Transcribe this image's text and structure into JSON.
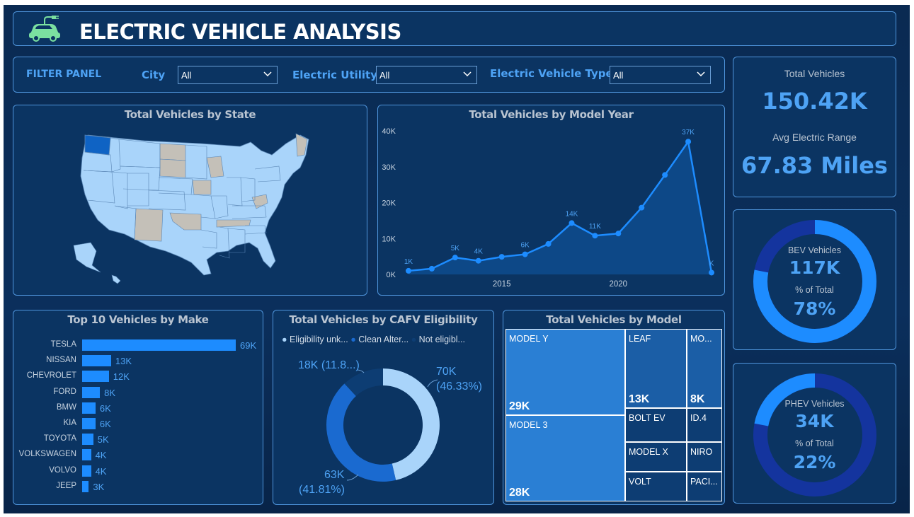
{
  "header": {
    "title": "ELECTRIC VEHICLE ANALYSIS",
    "logo_icon": "car-plug-icon"
  },
  "filters": {
    "panel_label": "FILTER PANEL",
    "items": [
      {
        "label": "City",
        "value": "All"
      },
      {
        "label": "Electric Utility",
        "value": "All"
      },
      {
        "label": "Electric Vehicle Type",
        "value": "All"
      }
    ]
  },
  "kpis": {
    "total_vehicles_label": "Total Vehicles",
    "total_vehicles_value": "150.42K",
    "avg_range_label": "Avg Electric Range",
    "avg_range_value": "67.83 Miles",
    "bev": {
      "label": "BEV Vehicles",
      "value": "117K",
      "pct_label": "% of Total",
      "pct_value": "78%",
      "fraction": 0.78
    },
    "phev": {
      "label": "PHEV Vehicles",
      "value": "34K",
      "pct_label": "% of Total",
      "pct_value": "22%",
      "fraction": 0.22
    }
  },
  "colors": {
    "accent": "#4ea3f5",
    "bar": "#1d8cff",
    "ring_bg": "#14349e",
    "ring_fg": "#1d8cff",
    "map_fill": "#a9d4fa",
    "map_highlight": "#0f63c4",
    "map_gray": "#c4c0b8"
  },
  "chart_data": [
    {
      "type": "map",
      "title": "Total Vehicles by State",
      "highlight": "Washington"
    },
    {
      "type": "area",
      "title": "Total Vehicles by Model Year",
      "x": [
        2011,
        2012,
        2013,
        2014,
        2015,
        2016,
        2017,
        2018,
        2019,
        2020,
        2021,
        2022,
        2023,
        2024
      ],
      "y": [
        1000,
        1600,
        4700,
        3800,
        4900,
        5600,
        8500,
        14300,
        10800,
        11400,
        18600,
        27700,
        37000,
        500
      ],
      "data_labels": {
        "2011": "1K",
        "2013": "5K",
        "2014": "4K",
        "2016": "6K",
        "2018": "14K",
        "2019": "11K",
        "2023": "37K",
        "2024": "K"
      },
      "yticks": [
        "0K",
        "10K",
        "20K",
        "30K",
        "40K"
      ],
      "xticks": [
        "2015",
        "2020"
      ],
      "ylim": [
        0,
        40000
      ]
    },
    {
      "type": "bar",
      "title": "Top 10 Vehicles by Make",
      "categories": [
        "TESLA",
        "NISSAN",
        "CHEVROLET",
        "FORD",
        "BMW",
        "KIA",
        "TOYOTA",
        "VOLKSWAGEN",
        "VOLVO",
        "JEEP"
      ],
      "values": [
        69000,
        13000,
        12000,
        8000,
        6000,
        6000,
        5000,
        4000,
        4000,
        3000
      ],
      "labels": [
        "69K",
        "13K",
        "12K",
        "8K",
        "6K",
        "6K",
        "5K",
        "4K",
        "4K",
        "3K"
      ]
    },
    {
      "type": "pie",
      "title": "Total Vehicles by CAFV Eligibility",
      "legend": [
        "Eligibility unk...",
        "Clean Alter...",
        "Not eligibl..."
      ],
      "values": [
        70000,
        63000,
        18000
      ],
      "labels": [
        {
          "value": "70K",
          "pct": "(46.33%)"
        },
        {
          "value": "63K",
          "pct": "(41.81%)"
        },
        {
          "value": "18K (11.8...)"
        }
      ]
    },
    {
      "type": "treemap",
      "title": "Total Vehicles by Model",
      "tiles": [
        {
          "name": "MODEL Y",
          "value": "29K"
        },
        {
          "name": "MODEL 3",
          "value": "28K"
        },
        {
          "name": "LEAF",
          "value": "13K"
        },
        {
          "name": "MO...",
          "value": "8K"
        },
        {
          "name": "BOLT EV",
          "value": ""
        },
        {
          "name": "ID.4",
          "value": ""
        },
        {
          "name": "MODEL X",
          "value": ""
        },
        {
          "name": "NIRO",
          "value": ""
        },
        {
          "name": "VOLT",
          "value": ""
        },
        {
          "name": "PACI...",
          "value": ""
        }
      ]
    }
  ]
}
